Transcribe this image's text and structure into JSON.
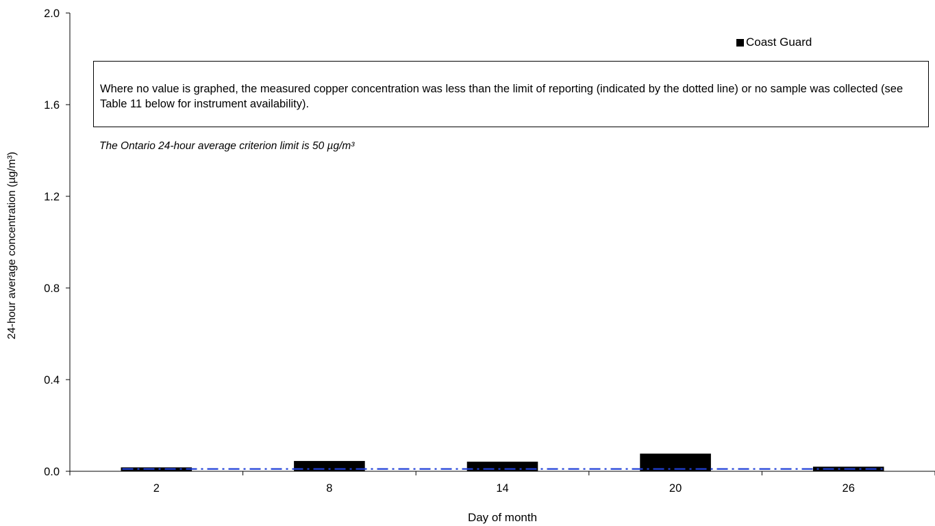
{
  "chart_data": {
    "type": "bar",
    "title": "",
    "xlabel": "Day of month",
    "ylabel": "24-hour average concentration (µg/m³)",
    "ylim": [
      0,
      2.0
    ],
    "yticks": [
      "0.0",
      "0.4",
      "0.8",
      "1.2",
      "1.6",
      "2.0"
    ],
    "categories": [
      "2",
      "8",
      "14",
      "20",
      "26"
    ],
    "series": [
      {
        "name": "Coast Guard",
        "color": "#000000",
        "values": [
          0.017,
          0.045,
          0.042,
          0.077,
          0.02
        ]
      }
    ],
    "reference_line": {
      "value": 0.01,
      "style": "dash-dot",
      "color": "#1f3fd6"
    },
    "grid": false,
    "legend_position": "top-right"
  },
  "annotations": {
    "note": "Where no value is graphed, the measured copper concentration was less than the limit of reporting (indicated by the dotted line) or no sample was collected (see Table 11 below for instrument availability).",
    "criterion": "The Ontario 24-hour average criterion limit is 50 µg/m³"
  },
  "legend": {
    "label": "Coast Guard"
  }
}
